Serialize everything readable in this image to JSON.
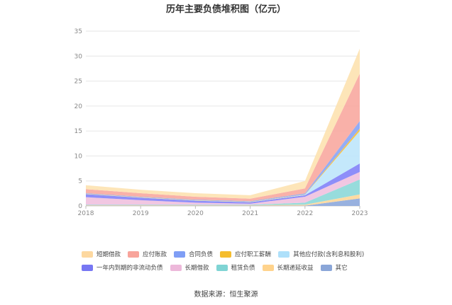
{
  "chart_data": {
    "type": "area",
    "stacked": true,
    "title": "历年主要负债堆积图（亿元）",
    "xlabel": "",
    "ylabel": "",
    "x": [
      "2018",
      "2019",
      "2020",
      "2021",
      "2022",
      "2023"
    ],
    "ylim": [
      0,
      35
    ],
    "yticks": [
      0,
      5,
      10,
      15,
      20,
      25,
      30,
      35
    ],
    "grid": true,
    "legend_position": "bottom",
    "series": [
      {
        "name": "其它",
        "color": "#8faadc",
        "values": [
          0.05,
          0.05,
          0.05,
          0.05,
          0.05,
          1.5
        ]
      },
      {
        "name": "长期递延收益",
        "color": "#ffd89b",
        "values": [
          0.1,
          0.1,
          0.1,
          0.1,
          0.2,
          0.8
        ]
      },
      {
        "name": "租赁负债",
        "color": "#8ed9d9",
        "values": [
          0.1,
          0.1,
          0.1,
          0.1,
          0.4,
          3.0
        ]
      },
      {
        "name": "长期借款",
        "color": "#f0c2e0",
        "values": [
          1.5,
          0.9,
          0.4,
          0.2,
          1.2,
          1.5
        ]
      },
      {
        "name": "一年内到期的非流动负债",
        "color": "#8484f8",
        "values": [
          0.6,
          0.5,
          0.4,
          0.3,
          0.3,
          1.7
        ]
      },
      {
        "name": "其他应付款(含利息和股利)",
        "color": "#bfe6fb",
        "values": [
          0.05,
          0.05,
          0.05,
          0.05,
          0.1,
          6.5
        ]
      },
      {
        "name": "应付职工薪酬",
        "color": "#f7c03c",
        "values": [
          0.05,
          0.05,
          0.05,
          0.05,
          0.05,
          0.5
        ]
      },
      {
        "name": "合同负债",
        "color": "#8aa6f5",
        "values": [
          0.1,
          0.1,
          0.1,
          0.1,
          0.2,
          1.5
        ]
      },
      {
        "name": "应付账款",
        "color": "#f8aaa2",
        "values": [
          0.8,
          0.7,
          0.6,
          0.5,
          1.0,
          9.5
        ]
      },
      {
        "name": "短期借款",
        "color": "#fde3b2",
        "values": [
          0.8,
          0.7,
          0.7,
          0.7,
          1.5,
          5.0
        ]
      }
    ],
    "source": "数据来源：恒生聚源"
  },
  "legend": {
    "row1": [
      {
        "label": "短期借款",
        "color": "#fdd8a0"
      },
      {
        "label": "应付账款",
        "color": "#f8a49b"
      },
      {
        "label": "合同负债",
        "color": "#7f9ef5"
      },
      {
        "label": "应付职工薪酬",
        "color": "#f5bd2e"
      },
      {
        "label": "其他应付款(含利息和股利)",
        "color": "#aee0fa"
      }
    ],
    "row2": [
      {
        "label": "一年内到期的非流动负债",
        "color": "#7777f3"
      },
      {
        "label": "长期借款",
        "color": "#edb8da"
      },
      {
        "label": "租赁负债",
        "color": "#7fd4d4"
      },
      {
        "label": "长期递延收益",
        "color": "#ffd38c"
      },
      {
        "label": "其它",
        "color": "#8aa6d8"
      }
    ]
  }
}
